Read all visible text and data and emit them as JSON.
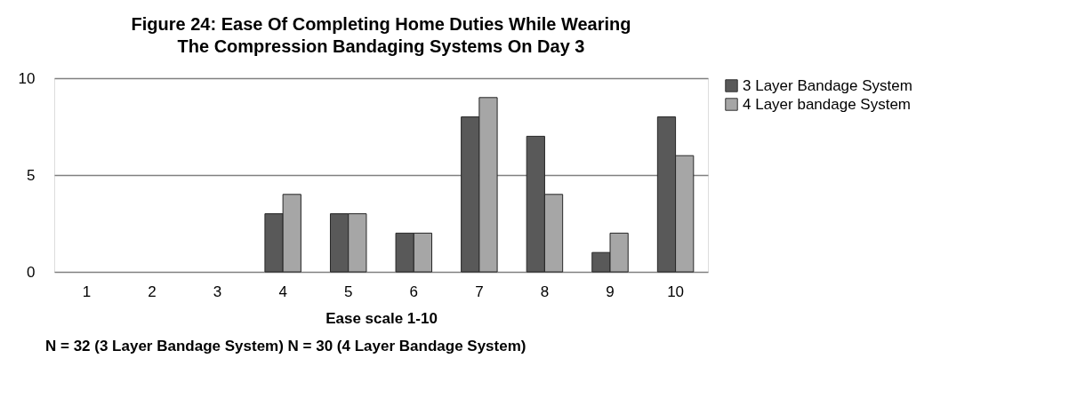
{
  "chart_data": {
    "type": "bar",
    "title": "Figure 24: Ease Of Completing Home Duties While Wearing The Compression Bandaging Systems On Day 3",
    "xlabel": "Ease scale 1-10",
    "annotations": [
      "N = 32 (3 Layer Bandage System) N = 30 (4 Layer Bandage System)"
    ],
    "categories": [
      "1",
      "2",
      "3",
      "4",
      "5",
      "6",
      "7",
      "8",
      "9",
      "10"
    ],
    "series": [
      {
        "name": "3 Layer Bandage System",
        "color": "#595959",
        "values": [
          0,
          0,
          0,
          3,
          3,
          2,
          8,
          7,
          1,
          8
        ]
      },
      {
        "name": "4 Layer bandage System",
        "color": "#a6a6a6",
        "values": [
          0,
          0,
          0,
          4,
          3,
          2,
          9,
          4,
          2,
          6
        ]
      }
    ],
    "ylim": [
      0,
      10
    ],
    "yticks": [
      0,
      5,
      10
    ],
    "grid": "y",
    "legend": "right"
  }
}
